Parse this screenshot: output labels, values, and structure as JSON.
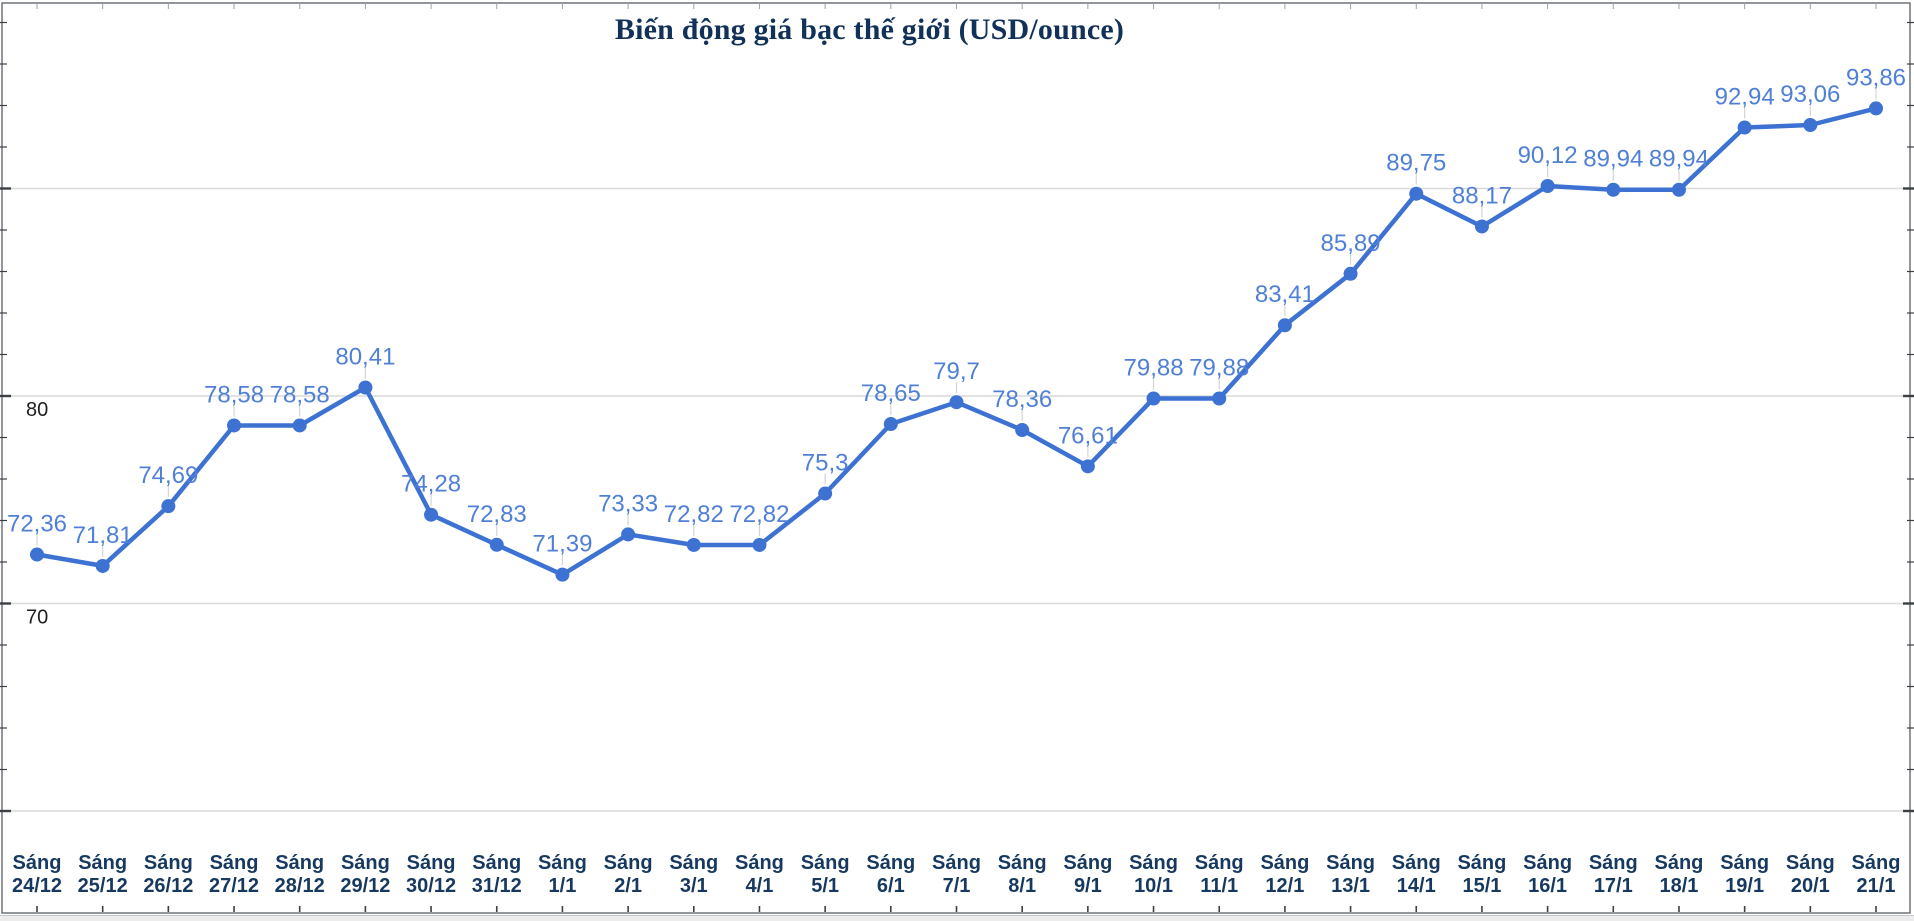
{
  "title": "Biến động giá bạc thế giới (USD/ounce)",
  "colors": {
    "line": "#3d72d2",
    "point": "#3d72d2",
    "value_label": "#5080d6",
    "axis_label_x": "#17395f",
    "axis_label_y": "#1f1f1f",
    "title": "#123158",
    "gridline": "#d9d9d9",
    "frame": "#6f7378",
    "tick": "#3c4043",
    "top_tick": "#9aa0a6",
    "leader": "#d4d4d4"
  },
  "chart_data": {
    "type": "line",
    "title": "Biến động giá bạc thế giới (USD/ounce)",
    "xlabel": "",
    "ylabel": "",
    "legend_position": "none",
    "grid": true,
    "x_prefix": "Sáng",
    "categories": [
      "24/12",
      "25/12",
      "26/12",
      "27/12",
      "28/12",
      "29/12",
      "30/12",
      "31/12",
      "1/1",
      "2/1",
      "3/1",
      "4/1",
      "5/1",
      "6/1",
      "7/1",
      "8/1",
      "9/1",
      "10/1",
      "11/1",
      "12/1",
      "13/1",
      "14/1",
      "15/1",
      "16/1",
      "17/1",
      "18/1",
      "19/1",
      "20/1",
      "21/1"
    ],
    "values": [
      72.36,
      71.81,
      74.69,
      78.58,
      78.58,
      80.41,
      74.28,
      72.83,
      71.39,
      73.33,
      72.82,
      72.82,
      75.3,
      78.65,
      79.7,
      78.36,
      76.61,
      79.88,
      79.88,
      83.41,
      85.89,
      89.75,
      88.17,
      90.12,
      89.94,
      89.94,
      92.94,
      93.06,
      93.86
    ],
    "value_labels": [
      "72,36",
      "71,81",
      "74,69",
      "78,58",
      "78,58",
      "80,41",
      "74,28",
      "72,83",
      "71,39",
      "73,33",
      "72,82",
      "72,82",
      "75,3",
      "78,65",
      "79,7",
      "78,36",
      "76,61",
      "79,88",
      "79,88",
      "83,41",
      "85,89",
      "89,75",
      "88,17",
      "90,12",
      "89,94",
      "89,94",
      "92,94",
      "93,06",
      "93,86"
    ],
    "y_axis": {
      "gridline_values": [
        60,
        70,
        80,
        90
      ],
      "labeled_ticks": [
        {
          "text": "80",
          "value": 80
        },
        {
          "text": "70",
          "value": 70
        }
      ],
      "minor_tick_step": 2,
      "range_hint": [
        60,
        99
      ]
    }
  }
}
